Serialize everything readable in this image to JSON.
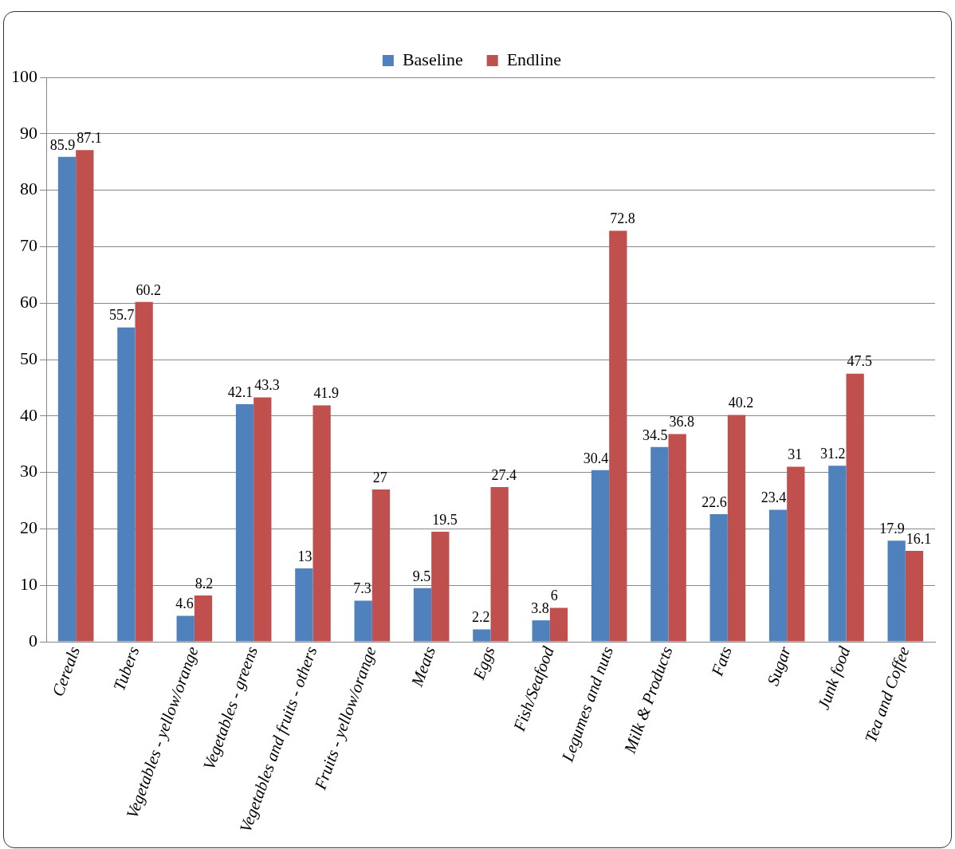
{
  "chart_data": {
    "type": "bar",
    "categories": [
      "Cereals",
      "Tubers",
      "Vegetables - yellow/orange",
      "Vegetables - greens",
      "Vegetables and fruits - others",
      "Fruits - yellow/orange",
      "Meats",
      "Eggs",
      "Fish/Seafood",
      "Legumes and nuts",
      "Milk & Products",
      "Fats",
      "Sugar",
      "Junk food",
      "Tea and Coffee"
    ],
    "series": [
      {
        "name": "Baseline",
        "color": "#4f81bd",
        "values": [
          85.9,
          55.7,
          4.6,
          42.1,
          13,
          7.3,
          9.5,
          2.2,
          3.8,
          30.4,
          34.5,
          22.6,
          23.4,
          31.2,
          17.9
        ]
      },
      {
        "name": "Endline",
        "color": "#c0504d",
        "values": [
          87.1,
          60.2,
          8.2,
          43.3,
          41.9,
          27,
          19.5,
          27.4,
          6,
          72.8,
          36.8,
          40.2,
          31,
          47.5,
          16.1
        ]
      }
    ],
    "ylim": [
      0,
      100
    ],
    "yticks": [
      0,
      10,
      20,
      30,
      40,
      50,
      60,
      70,
      80,
      90,
      100
    ],
    "grid": "y",
    "legend": "top",
    "data_labels": true
  }
}
